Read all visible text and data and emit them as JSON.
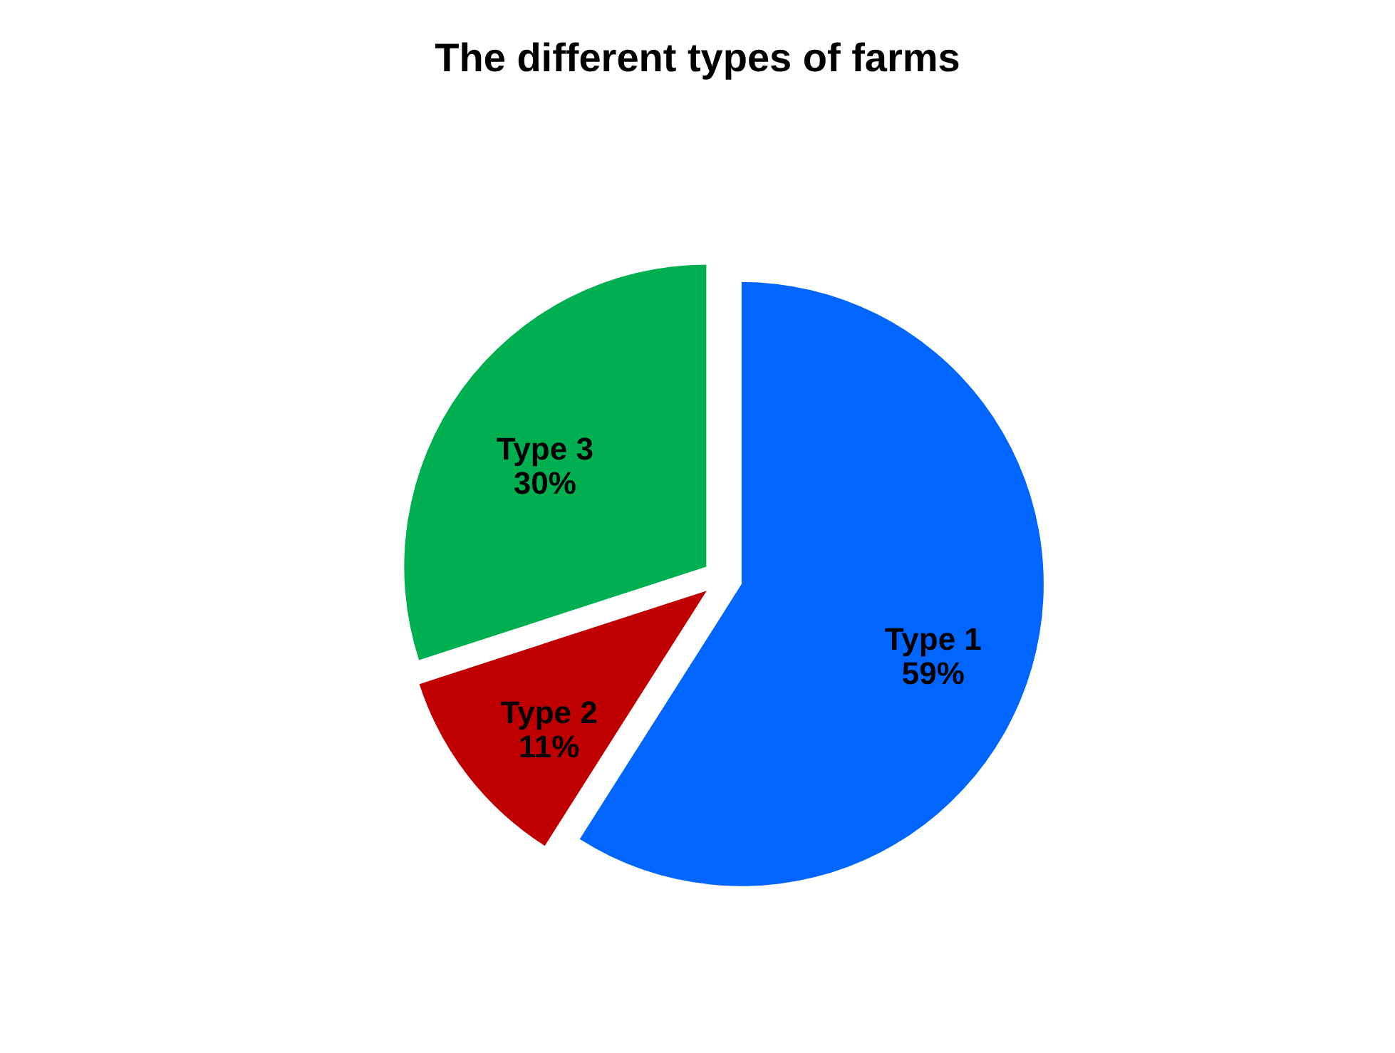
{
  "chart_data": {
    "type": "pie",
    "title": "The different types of farms",
    "categories": [
      "Type 1",
      "Type 2",
      "Type 3"
    ],
    "values": [
      59,
      11,
      30
    ],
    "value_labels": [
      "59%",
      "11%",
      "30%"
    ],
    "colors": [
      "#0066ff",
      "#c00000",
      "#00b050"
    ],
    "legend": false
  }
}
